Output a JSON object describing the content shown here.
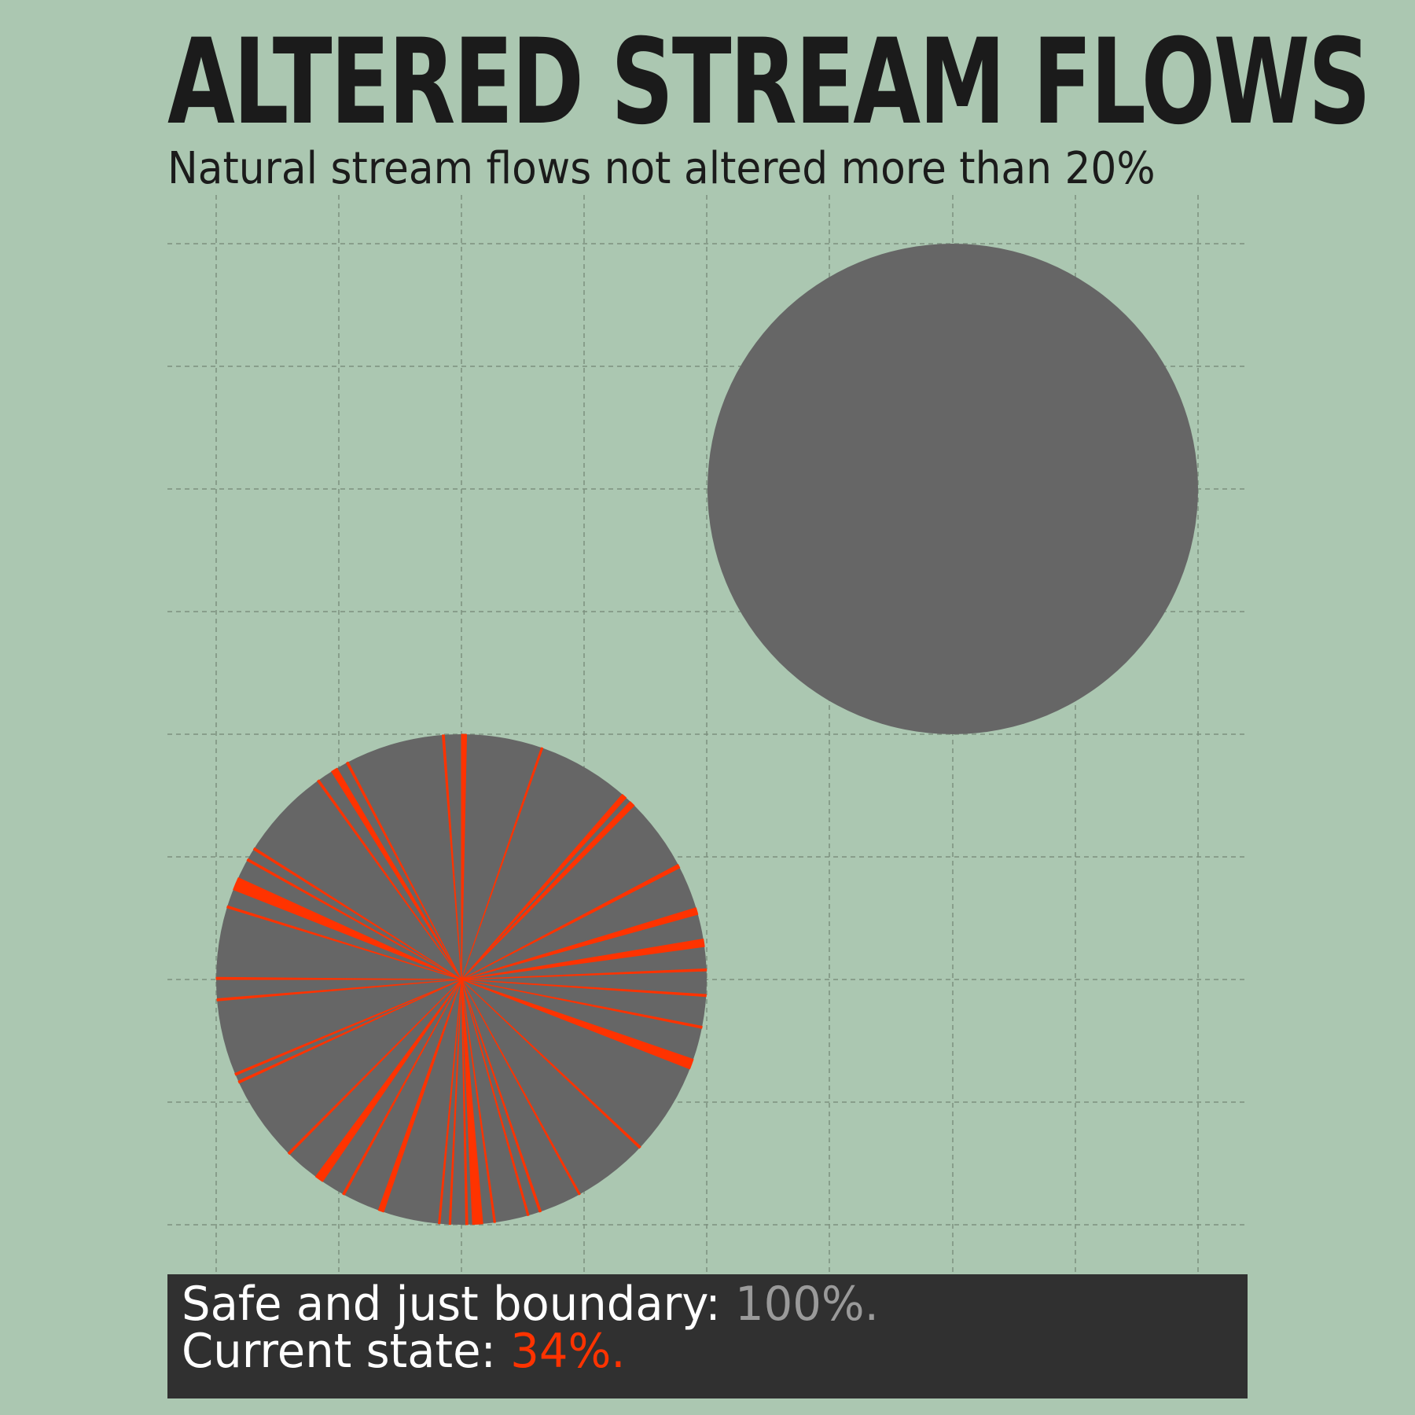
{
  "colors": {
    "background": "#abc7b1",
    "circle": "#666666",
    "wedge": "#ff3300",
    "grid": "#7d907f",
    "footer_bg": "#303030",
    "boundary_value": "#9a9a9a",
    "current_value": "#ff3300"
  },
  "header": {
    "title": "ALTERED STREAM FLOWS",
    "subtitle": "Natural stream flows not altered more than 20%"
  },
  "footer": {
    "boundary_label": "Safe and just boundary: ",
    "boundary_value": "100%.",
    "current_label": "Current state: ",
    "current_value": "34%."
  },
  "chart_data": {
    "type": "pie",
    "grid": true,
    "boundary": {
      "share_percent": 100
    },
    "current": {
      "share_percent": 34,
      "altered_slices": [
        {
          "start_deg": 0,
          "end_deg": 1.2
        },
        {
          "start_deg": 19,
          "end_deg": 19.4
        },
        {
          "start_deg": 41,
          "end_deg": 42.2
        },
        {
          "start_deg": 43.5,
          "end_deg": 44.8
        },
        {
          "start_deg": 62,
          "end_deg": 62.9
        },
        {
          "start_deg": 73,
          "end_deg": 74.6
        },
        {
          "start_deg": 80.5,
          "end_deg": 82.3
        },
        {
          "start_deg": 87.5,
          "end_deg": 88
        },
        {
          "start_deg": 93.5,
          "end_deg": 94
        },
        {
          "start_deg": 101,
          "end_deg": 101.5
        },
        {
          "start_deg": 109,
          "end_deg": 111.4
        },
        {
          "start_deg": 133,
          "end_deg": 133.5
        },
        {
          "start_deg": 151,
          "end_deg": 151.4
        },
        {
          "start_deg": 161,
          "end_deg": 161.5
        },
        {
          "start_deg": 164,
          "end_deg": 164.4
        },
        {
          "start_deg": 172,
          "end_deg": 172.4
        },
        {
          "start_deg": 175,
          "end_deg": 177.4
        },
        {
          "start_deg": 178.5,
          "end_deg": 179
        },
        {
          "start_deg": 182.5,
          "end_deg": 182.9
        },
        {
          "start_deg": 185,
          "end_deg": 185.4
        },
        {
          "start_deg": 198.5,
          "end_deg": 199.8
        },
        {
          "start_deg": 208.5,
          "end_deg": 209
        },
        {
          "start_deg": 214.5,
          "end_deg": 216.5
        },
        {
          "start_deg": 224.5,
          "end_deg": 225
        },
        {
          "start_deg": 245,
          "end_deg": 245.5
        },
        {
          "start_deg": 247,
          "end_deg": 247.5
        },
        {
          "start_deg": 265,
          "end_deg": 265.5
        },
        {
          "start_deg": 270,
          "end_deg": 270.5
        },
        {
          "start_deg": 287,
          "end_deg": 287.5
        },
        {
          "start_deg": 291.5,
          "end_deg": 294.5
        },
        {
          "start_deg": 299,
          "end_deg": 299.5
        },
        {
          "start_deg": 302,
          "end_deg": 302.5
        },
        {
          "start_deg": 324,
          "end_deg": 324.5
        },
        {
          "start_deg": 328,
          "end_deg": 329.5
        },
        {
          "start_deg": 332,
          "end_deg": 332.5
        },
        {
          "start_deg": 355.5,
          "end_deg": 356
        }
      ]
    }
  }
}
